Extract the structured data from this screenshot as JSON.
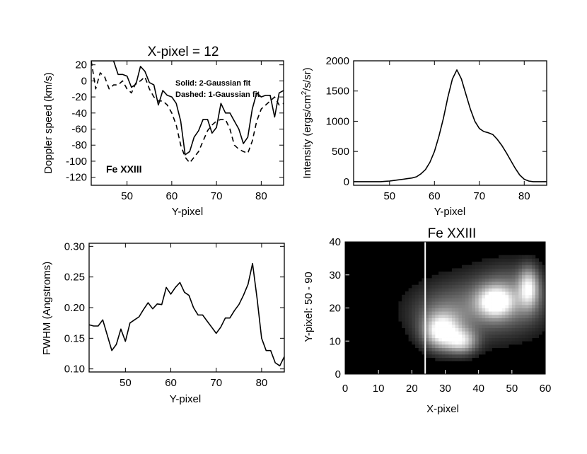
{
  "figure_title": "X-pixel = 12",
  "chart_data": [
    {
      "id": "doppler",
      "type": "line",
      "title": "X-pixel = 12",
      "xlabel": "Y-pixel",
      "ylabel": "Doppler speed (km/s)",
      "xlim": [
        42,
        85
      ],
      "ylim": [
        -130,
        25
      ],
      "xticks": [
        50,
        60,
        70,
        80
      ],
      "yticks": [
        20,
        0,
        -20,
        -40,
        -60,
        -80,
        -100,
        -120
      ],
      "annotations": [
        "Solid: 2-Gaussian fit",
        "Dashed: 1-Gaussian fit"
      ],
      "ion_label": "Fe XXIII",
      "series": [
        {
          "name": "Solid: 2-Gaussian fit",
          "style": "solid",
          "x": [
            42,
            43,
            44,
            45,
            46,
            47,
            48,
            49,
            50,
            51,
            52,
            53,
            54,
            55,
            56,
            57,
            58,
            59,
            60,
            61,
            62,
            63,
            64,
            65,
            66,
            67,
            68,
            69,
            70,
            71,
            72,
            73,
            74,
            75,
            76,
            77,
            78,
            79,
            80,
            81,
            82,
            83,
            84,
            85
          ],
          "y": [
            25,
            25,
            25,
            25,
            25,
            25,
            8,
            8,
            6,
            -8,
            -4,
            18,
            12,
            -2,
            -5,
            -30,
            -12,
            -18,
            -20,
            -28,
            -50,
            -92,
            -88,
            -70,
            -62,
            -48,
            -48,
            -65,
            -58,
            -28,
            -40,
            -40,
            -50,
            -60,
            -78,
            -70,
            -35,
            -15,
            -20,
            -18,
            -18,
            -45,
            -15,
            -12
          ]
        },
        {
          "name": "Dashed: 1-Gaussian fit",
          "style": "dashed",
          "x": [
            42,
            43,
            44,
            45,
            46,
            47,
            48,
            49,
            50,
            51,
            52,
            53,
            54,
            55,
            56,
            57,
            58,
            59,
            60,
            61,
            62,
            63,
            64,
            65,
            66,
            67,
            68,
            69,
            70,
            71,
            72,
            73,
            74,
            75,
            76,
            77,
            78,
            79,
            80,
            81,
            82,
            83,
            84,
            85
          ],
          "y": [
            25,
            -10,
            10,
            5,
            -10,
            -5,
            -5,
            0,
            -10,
            -15,
            -2,
            0,
            5,
            -10,
            -20,
            -25,
            -25,
            -30,
            -40,
            -55,
            -80,
            -95,
            -102,
            -95,
            -88,
            -75,
            -62,
            -55,
            -50,
            -48,
            -48,
            -60,
            -80,
            -85,
            -88,
            -90,
            -75,
            -50,
            -35,
            -30,
            -25,
            -20,
            -30,
            -28
          ]
        }
      ]
    },
    {
      "id": "intensity",
      "type": "line",
      "title": "",
      "xlabel": "Y-pixel",
      "ylabel_parts": [
        "Intensity (ergs/cm",
        "2",
        "/s/sr)"
      ],
      "xlim": [
        42,
        85
      ],
      "ylim": [
        -60,
        2000
      ],
      "xticks": [
        50,
        60,
        70,
        80
      ],
      "yticks": [
        0,
        500,
        1000,
        1500,
        2000
      ],
      "series": [
        {
          "name": "Intensity",
          "style": "solid",
          "x": [
            42,
            43,
            44,
            45,
            46,
            47,
            48,
            49,
            50,
            51,
            52,
            53,
            54,
            55,
            56,
            57,
            58,
            59,
            60,
            61,
            62,
            63,
            64,
            65,
            66,
            67,
            68,
            69,
            70,
            71,
            72,
            73,
            74,
            75,
            76,
            77,
            78,
            79,
            80,
            81,
            82,
            83,
            84,
            85
          ],
          "y": [
            0,
            0,
            0,
            0,
            0,
            0,
            0,
            5,
            10,
            20,
            30,
            40,
            50,
            60,
            80,
            130,
            200,
            320,
            500,
            750,
            1050,
            1400,
            1700,
            1850,
            1700,
            1450,
            1200,
            1000,
            880,
            830,
            810,
            780,
            700,
            600,
            480,
            350,
            220,
            110,
            40,
            10,
            0,
            0,
            0,
            0
          ]
        }
      ]
    },
    {
      "id": "fwhm",
      "type": "line",
      "title": "",
      "xlabel": "Y-pixel",
      "ylabel": "FWHM (Angstroms)",
      "xlim": [
        42,
        85
      ],
      "ylim": [
        0.095,
        0.305
      ],
      "xticks": [
        50,
        60,
        70,
        80
      ],
      "yticks": [
        0.1,
        0.15,
        0.2,
        0.25,
        0.3
      ],
      "series": [
        {
          "name": "FWHM",
          "style": "solid",
          "x": [
            42,
            43,
            44,
            45,
            46,
            47,
            48,
            49,
            50,
            51,
            52,
            53,
            54,
            55,
            56,
            57,
            58,
            59,
            60,
            61,
            62,
            63,
            64,
            65,
            66,
            67,
            68,
            69,
            70,
            71,
            72,
            73,
            74,
            75,
            76,
            77,
            78,
            79,
            80,
            81,
            82,
            83,
            84,
            85
          ],
          "y": [
            0.172,
            0.17,
            0.17,
            0.18,
            0.155,
            0.13,
            0.14,
            0.165,
            0.145,
            0.175,
            0.18,
            0.185,
            0.197,
            0.208,
            0.198,
            0.206,
            0.205,
            0.233,
            0.222,
            0.233,
            0.241,
            0.225,
            0.22,
            0.2,
            0.188,
            0.188,
            0.178,
            0.168,
            0.158,
            0.168,
            0.183,
            0.183,
            0.195,
            0.205,
            0.22,
            0.238,
            0.272,
            0.215,
            0.15,
            0.13,
            0.13,
            0.11,
            0.105,
            0.12
          ]
        }
      ]
    },
    {
      "id": "image",
      "type": "heatmap",
      "title": "Fe XXIII",
      "xlabel": "X-pixel",
      "ylabel": "Y-pixel: 50 - 90",
      "xlim": [
        0,
        60
      ],
      "ylim": [
        0,
        40
      ],
      "xticks": [
        0,
        10,
        20,
        30,
        40,
        50,
        60
      ],
      "yticks": [
        0,
        10,
        20,
        30,
        40
      ],
      "marker_x": 24,
      "colormap": "grayscale",
      "blobs": [
        {
          "x": 29,
          "y": 13,
          "sx": 3.5,
          "sy": 3.5,
          "amp": 1.0
        },
        {
          "x": 35,
          "y": 10,
          "sx": 3.0,
          "sy": 2.5,
          "amp": 0.7
        },
        {
          "x": 45,
          "y": 22,
          "sx": 3.5,
          "sy": 3.0,
          "amp": 0.95
        },
        {
          "x": 55,
          "y": 26,
          "sx": 2.0,
          "sy": 4.0,
          "amp": 0.75
        },
        {
          "x": 40,
          "y": 20,
          "sx": 12,
          "sy": 7,
          "amp": 0.25
        },
        {
          "x": 30,
          "y": 18,
          "sx": 7,
          "sy": 5,
          "amp": 0.2
        },
        {
          "x": 50,
          "y": 24,
          "sx": 7,
          "sy": 6,
          "amp": 0.3
        }
      ]
    }
  ]
}
